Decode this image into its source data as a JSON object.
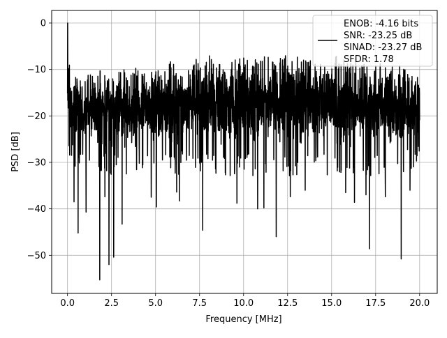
{
  "chart_data": {
    "type": "line",
    "title": "",
    "xlabel": "Frequency [MHz]",
    "ylabel": "PSD [dB]",
    "xlim": [
      -0.9,
      21.0
    ],
    "ylim": [
      -58.2,
      2.7
    ],
    "x_ticks": [
      0.0,
      2.5,
      5.0,
      7.5,
      10.0,
      12.5,
      15.0,
      17.5,
      20.0
    ],
    "x_tick_labels": [
      "0.0",
      "2.5",
      "5.0",
      "7.5",
      "10.0",
      "12.5",
      "15.0",
      "17.5",
      "20.0"
    ],
    "y_ticks": [
      0,
      -10,
      -20,
      -30,
      -40,
      -50
    ],
    "y_tick_labels": [
      "0",
      "−10",
      "−20",
      "−30",
      "−40",
      "−50"
    ],
    "grid": true,
    "legend_position": "top-right",
    "line_color": "#000000",
    "legend_lines": [
      "ENOB: -4.16 bits",
      "SNR: -23.25 dB",
      "SINAD: -23.27 dB",
      "SFDR: 1.78"
    ],
    "series": [
      {
        "description": "noise-like power spectral density from 0 to 20 MHz; values fluctuate between roughly -8 and -28 dB with deep notches",
        "band_upper": [
          [
            0.0,
            -4
          ],
          [
            0.05,
            0.0
          ],
          [
            0.1,
            -6
          ],
          [
            0.2,
            -12
          ],
          [
            0.5,
            -11
          ],
          [
            1.0,
            -11
          ],
          [
            2.0,
            -10
          ],
          [
            3.0,
            -10
          ],
          [
            4.0,
            -9
          ],
          [
            5.0,
            -9
          ],
          [
            6.0,
            -8
          ],
          [
            7.0,
            -8
          ],
          [
            8.0,
            -7
          ],
          [
            9.0,
            -8
          ],
          [
            10.0,
            -7
          ],
          [
            11.0,
            -7
          ],
          [
            12.0,
            -7
          ],
          [
            13.0,
            -7
          ],
          [
            14.0,
            -7
          ],
          [
            15.0,
            -7
          ],
          [
            16.0,
            -7
          ],
          [
            17.0,
            -8
          ],
          [
            18.0,
            -9
          ],
          [
            19.0,
            -9
          ],
          [
            20.0,
            -12
          ]
        ],
        "band_lower": [
          [
            0.0,
            -25
          ],
          [
            1.0,
            -27
          ],
          [
            2.0,
            -28
          ],
          [
            3.0,
            -28
          ],
          [
            4.0,
            -28
          ],
          [
            5.0,
            -28
          ],
          [
            6.0,
            -28
          ],
          [
            7.0,
            -27
          ],
          [
            8.0,
            -28
          ],
          [
            9.0,
            -28
          ],
          [
            10.0,
            -28
          ],
          [
            11.0,
            -28
          ],
          [
            12.0,
            -28
          ],
          [
            13.0,
            -28
          ],
          [
            14.0,
            -28
          ],
          [
            15.0,
            -28
          ],
          [
            16.0,
            -28
          ],
          [
            17.0,
            -28
          ],
          [
            18.0,
            -28
          ],
          [
            19.0,
            -28
          ],
          [
            20.0,
            -25
          ]
        ],
        "dips": [
          [
            0.37,
            -38.5
          ],
          [
            0.6,
            -45.2
          ],
          [
            1.05,
            -40.7
          ],
          [
            1.83,
            -55.3
          ],
          [
            2.12,
            -37.4
          ],
          [
            2.35,
            -52.0
          ],
          [
            2.62,
            -50.4
          ],
          [
            3.1,
            -43.3
          ],
          [
            4.75,
            -37.5
          ],
          [
            5.05,
            -39.6
          ],
          [
            6.2,
            -36.4
          ],
          [
            6.35,
            -38.3
          ],
          [
            7.68,
            -44.6
          ],
          [
            9.62,
            -38.8
          ],
          [
            10.8,
            -40.0
          ],
          [
            11.15,
            -39.8
          ],
          [
            11.85,
            -46.0
          ],
          [
            12.65,
            -37.4
          ],
          [
            13.5,
            -36.0
          ],
          [
            15.8,
            -36.5
          ],
          [
            16.3,
            -38.6
          ],
          [
            16.95,
            -37.0
          ],
          [
            17.15,
            -48.6
          ],
          [
            18.05,
            -37.4
          ],
          [
            18.95,
            -50.8
          ],
          [
            19.45,
            -36.0
          ]
        ]
      }
    ]
  }
}
